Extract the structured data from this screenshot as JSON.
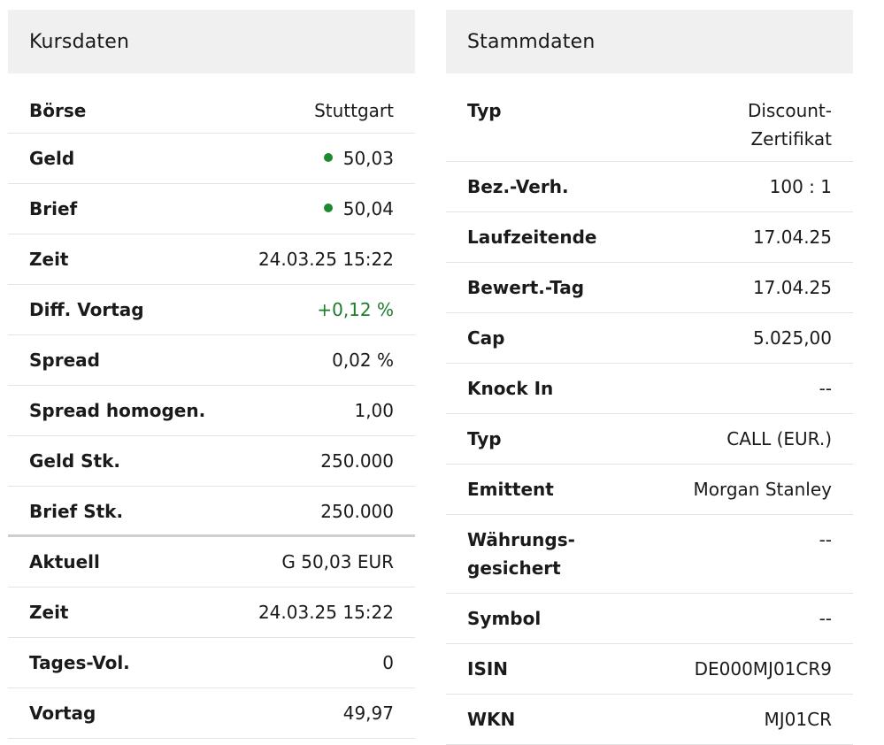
{
  "kursdaten": {
    "title": "Kursdaten",
    "rows": [
      {
        "label": "Börse",
        "value": "Stuttgart"
      },
      {
        "label": "Geld",
        "value": "50,03"
      },
      {
        "label": "Brief",
        "value": "50,04"
      },
      {
        "label": "Zeit",
        "value": "24.03.25 15:22"
      },
      {
        "label": "Diff. Vortag",
        "value": "+0,12 %"
      },
      {
        "label": "Spread",
        "value": "0,02 %"
      },
      {
        "label": "Spread homogen.",
        "value": "1,00"
      },
      {
        "label": "Geld Stk.",
        "value": "250.000"
      },
      {
        "label": "Brief Stk.",
        "value": "250.000"
      },
      {
        "label": "Aktuell",
        "value": "G 50,03 EUR"
      },
      {
        "label": "Zeit",
        "value": "24.03.25 15:22"
      },
      {
        "label": "Tages-Vol.",
        "value": "0"
      },
      {
        "label": "Vortag",
        "value": "49,97"
      }
    ],
    "dot_color": "#1e8a2e",
    "positive_color": "#1e7b2e"
  },
  "stammdaten": {
    "title": "Stammdaten",
    "rows": [
      {
        "label": "Typ",
        "value_line1": "Discount-",
        "value_line2": "Zertifikat"
      },
      {
        "label": "Bez.-Verh.",
        "value": "100 : 1"
      },
      {
        "label": "Laufzeitende",
        "value": "17.04.25"
      },
      {
        "label": "Bewert.-Tag",
        "value": "17.04.25"
      },
      {
        "label": "Cap",
        "value": "5.025,00"
      },
      {
        "label": "Knock In",
        "value": "--"
      },
      {
        "label": "Typ",
        "value": "CALL (EUR.)"
      },
      {
        "label": "Emittent",
        "value": "Morgan Stanley"
      },
      {
        "label_line1": "Währungs-",
        "label_line2": "gesichert",
        "value": "--"
      },
      {
        "label": "Symbol",
        "value": "--"
      },
      {
        "label": "ISIN",
        "value": "DE000MJ01CR9"
      },
      {
        "label": "WKN",
        "value": "MJ01CR"
      }
    ]
  }
}
